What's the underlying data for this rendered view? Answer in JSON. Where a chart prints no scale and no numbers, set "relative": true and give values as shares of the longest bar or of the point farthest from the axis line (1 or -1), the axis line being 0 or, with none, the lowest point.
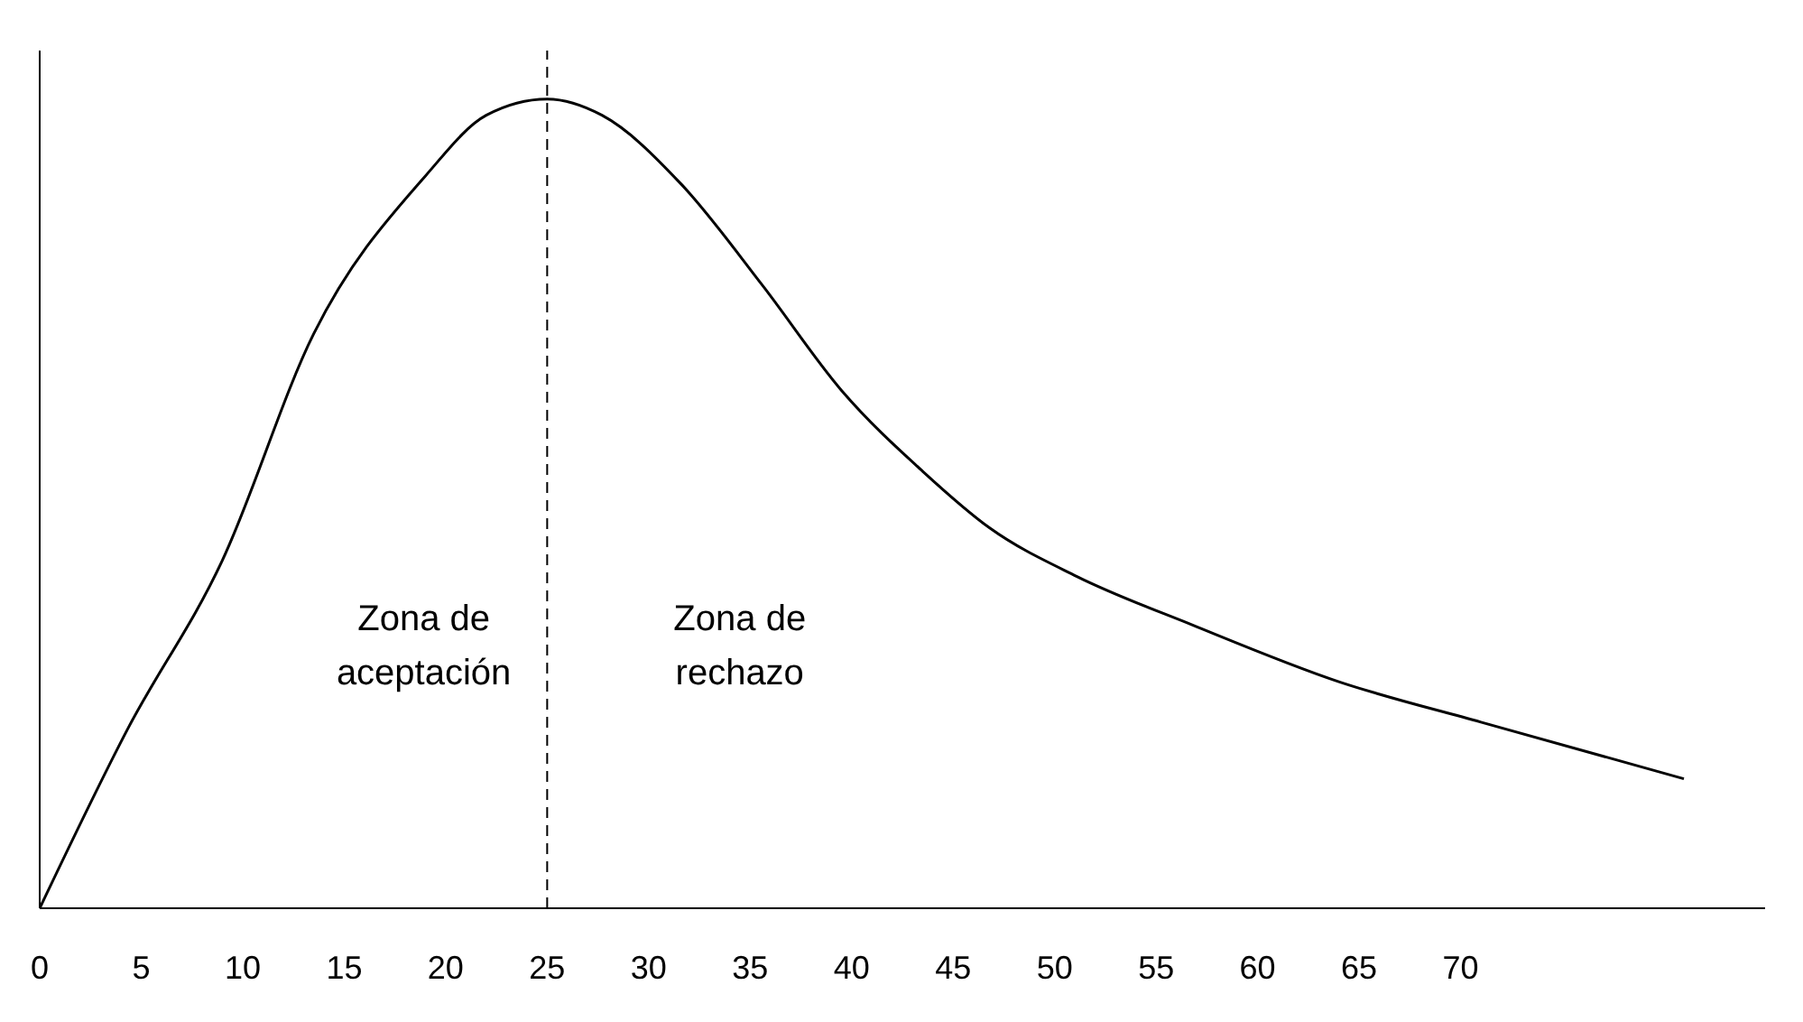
{
  "chart_data": {
    "type": "line",
    "relative": true,
    "x": [
      0,
      4.3,
      9,
      13.5,
      19,
      22,
      25,
      27.7,
      31.6,
      35.6,
      39.5,
      43.5,
      46.8,
      51.1,
      56.8,
      64,
      71,
      81
    ],
    "series": [
      {
        "color": "#000000",
        "values": [
          0,
          0.22,
          0.43,
          0.71,
          0.905,
          0.98,
          1,
          0.98,
          0.895,
          0.77,
          0.64,
          0.54,
          0.47,
          0.41,
          0.35,
          0.28,
          0.23,
          0.16
        ]
      }
    ],
    "xlim": [
      0,
      85
    ],
    "xticks": [
      0,
      5,
      10,
      15,
      20,
      25,
      30,
      35,
      40,
      45,
      50,
      55,
      60,
      65,
      70
    ],
    "ref_lines": [
      {
        "axis": "x",
        "value": 25,
        "line_style": "dashed",
        "color": "#000000"
      }
    ],
    "annotations": [
      "Zona de aceptación",
      "Zona de rechazo"
    ],
    "grid": false,
    "marker": "none",
    "line_style": "solid"
  }
}
